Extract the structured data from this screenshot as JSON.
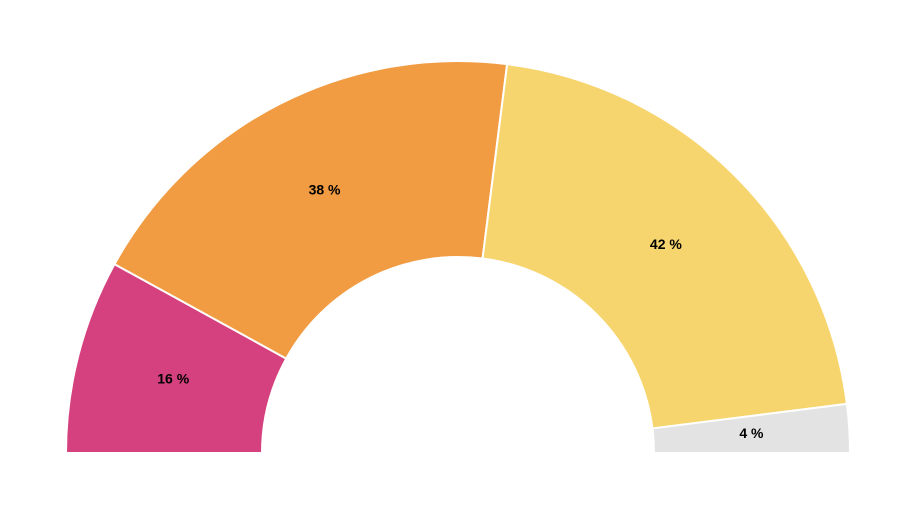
{
  "chart_data": {
    "type": "pie",
    "variant": "semicircle",
    "slices": [
      {
        "value": 16,
        "label": "16 %",
        "color": "#d4417e"
      },
      {
        "value": 38,
        "label": "38 %",
        "color": "#f19c42"
      },
      {
        "value": 42,
        "label": "42 %",
        "color": "#f7d56e"
      },
      {
        "value": 4,
        "label": "4 %",
        "color": "#e3e3e3"
      }
    ]
  }
}
